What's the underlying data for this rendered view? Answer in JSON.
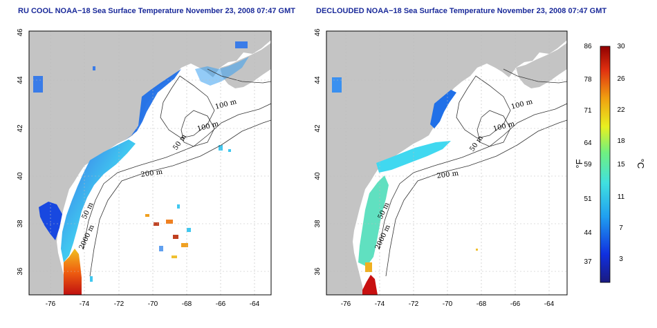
{
  "left_panel": {
    "title": "RU COOL NOAA−18 Sea Surface Temperature November 23, 2008 07:47 GMT",
    "x_ticks": [
      "-76",
      "-74",
      "-72",
      "-70",
      "-68",
      "-66",
      "-64"
    ],
    "y_ticks": [
      "46",
      "44",
      "42",
      "40",
      "38",
      "36"
    ],
    "contour_labels": [
      "100 m",
      "100 m",
      "50 m",
      "200 m",
      "50 m",
      "2000 m"
    ]
  },
  "right_panel": {
    "title": "DECLOUDED NOAA−18 Sea Surface Temperature November 23, 2008 07:47 GMT",
    "x_ticks": [
      "-76",
      "-74",
      "-72",
      "-70",
      "-68",
      "-66",
      "-64"
    ],
    "y_ticks": [
      "46",
      "44",
      "42",
      "40",
      "38",
      "36"
    ],
    "contour_labels": [
      "100 m",
      "100 m",
      "50 m",
      "200 m",
      "50 m",
      "2000 m"
    ]
  },
  "colorbar": {
    "fahrenheit_label": "°F",
    "celsius_label": "°C",
    "fahrenheit_ticks": [
      "86",
      "78",
      "71",
      "64",
      "59",
      "51",
      "44",
      "37"
    ],
    "celsius_ticks": [
      "30",
      "26",
      "22",
      "18",
      "15",
      "11",
      "7",
      "3"
    ]
  },
  "colors": {
    "land": "#c4c4c4",
    "title": "#1a2a9a",
    "cold": "#1030d8",
    "cool": "#40c8f0",
    "mild": "#60e8a0",
    "warm": "#f0a020",
    "hot": "#c01010"
  }
}
